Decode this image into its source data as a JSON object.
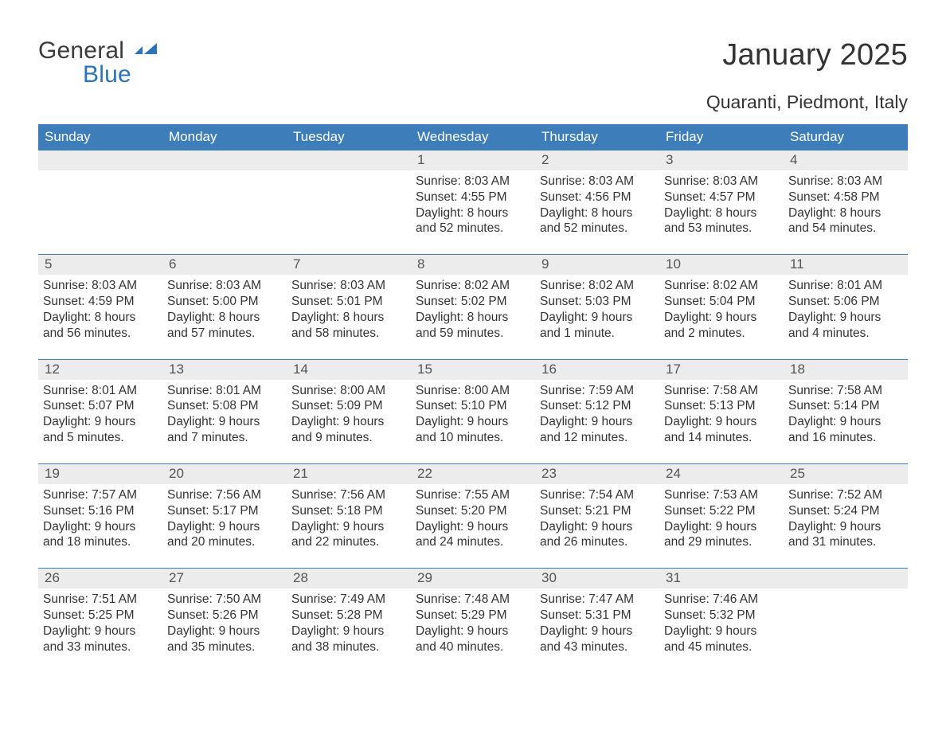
{
  "logo": {
    "text1": "General",
    "text2": "Blue"
  },
  "title": "January 2025",
  "subtitle": "Quaranti, Piedmont, Italy",
  "colors": {
    "header_bg": "#3d7db9",
    "header_text": "#ffffff",
    "daynum_bg": "#ececec",
    "daynum_text": "#555555",
    "body_text": "#333333",
    "rule": "#3d7db9",
    "logo_blue": "#2a74ba",
    "page_bg": "#ffffff"
  },
  "weekdays": [
    "Sunday",
    "Monday",
    "Tuesday",
    "Wednesday",
    "Thursday",
    "Friday",
    "Saturday"
  ],
  "weeks": [
    [
      {
        "day": "",
        "sunrise": "",
        "sunset": "",
        "daylight": ""
      },
      {
        "day": "",
        "sunrise": "",
        "sunset": "",
        "daylight": ""
      },
      {
        "day": "",
        "sunrise": "",
        "sunset": "",
        "daylight": ""
      },
      {
        "day": "1",
        "sunrise": "Sunrise: 8:03 AM",
        "sunset": "Sunset: 4:55 PM",
        "daylight": "Daylight: 8 hours and 52 minutes."
      },
      {
        "day": "2",
        "sunrise": "Sunrise: 8:03 AM",
        "sunset": "Sunset: 4:56 PM",
        "daylight": "Daylight: 8 hours and 52 minutes."
      },
      {
        "day": "3",
        "sunrise": "Sunrise: 8:03 AM",
        "sunset": "Sunset: 4:57 PM",
        "daylight": "Daylight: 8 hours and 53 minutes."
      },
      {
        "day": "4",
        "sunrise": "Sunrise: 8:03 AM",
        "sunset": "Sunset: 4:58 PM",
        "daylight": "Daylight: 8 hours and 54 minutes."
      }
    ],
    [
      {
        "day": "5",
        "sunrise": "Sunrise: 8:03 AM",
        "sunset": "Sunset: 4:59 PM",
        "daylight": "Daylight: 8 hours and 56 minutes."
      },
      {
        "day": "6",
        "sunrise": "Sunrise: 8:03 AM",
        "sunset": "Sunset: 5:00 PM",
        "daylight": "Daylight: 8 hours and 57 minutes."
      },
      {
        "day": "7",
        "sunrise": "Sunrise: 8:03 AM",
        "sunset": "Sunset: 5:01 PM",
        "daylight": "Daylight: 8 hours and 58 minutes."
      },
      {
        "day": "8",
        "sunrise": "Sunrise: 8:02 AM",
        "sunset": "Sunset: 5:02 PM",
        "daylight": "Daylight: 8 hours and 59 minutes."
      },
      {
        "day": "9",
        "sunrise": "Sunrise: 8:02 AM",
        "sunset": "Sunset: 5:03 PM",
        "daylight": "Daylight: 9 hours and 1 minute."
      },
      {
        "day": "10",
        "sunrise": "Sunrise: 8:02 AM",
        "sunset": "Sunset: 5:04 PM",
        "daylight": "Daylight: 9 hours and 2 minutes."
      },
      {
        "day": "11",
        "sunrise": "Sunrise: 8:01 AM",
        "sunset": "Sunset: 5:06 PM",
        "daylight": "Daylight: 9 hours and 4 minutes."
      }
    ],
    [
      {
        "day": "12",
        "sunrise": "Sunrise: 8:01 AM",
        "sunset": "Sunset: 5:07 PM",
        "daylight": "Daylight: 9 hours and 5 minutes."
      },
      {
        "day": "13",
        "sunrise": "Sunrise: 8:01 AM",
        "sunset": "Sunset: 5:08 PM",
        "daylight": "Daylight: 9 hours and 7 minutes."
      },
      {
        "day": "14",
        "sunrise": "Sunrise: 8:00 AM",
        "sunset": "Sunset: 5:09 PM",
        "daylight": "Daylight: 9 hours and 9 minutes."
      },
      {
        "day": "15",
        "sunrise": "Sunrise: 8:00 AM",
        "sunset": "Sunset: 5:10 PM",
        "daylight": "Daylight: 9 hours and 10 minutes."
      },
      {
        "day": "16",
        "sunrise": "Sunrise: 7:59 AM",
        "sunset": "Sunset: 5:12 PM",
        "daylight": "Daylight: 9 hours and 12 minutes."
      },
      {
        "day": "17",
        "sunrise": "Sunrise: 7:58 AM",
        "sunset": "Sunset: 5:13 PM",
        "daylight": "Daylight: 9 hours and 14 minutes."
      },
      {
        "day": "18",
        "sunrise": "Sunrise: 7:58 AM",
        "sunset": "Sunset: 5:14 PM",
        "daylight": "Daylight: 9 hours and 16 minutes."
      }
    ],
    [
      {
        "day": "19",
        "sunrise": "Sunrise: 7:57 AM",
        "sunset": "Sunset: 5:16 PM",
        "daylight": "Daylight: 9 hours and 18 minutes."
      },
      {
        "day": "20",
        "sunrise": "Sunrise: 7:56 AM",
        "sunset": "Sunset: 5:17 PM",
        "daylight": "Daylight: 9 hours and 20 minutes."
      },
      {
        "day": "21",
        "sunrise": "Sunrise: 7:56 AM",
        "sunset": "Sunset: 5:18 PM",
        "daylight": "Daylight: 9 hours and 22 minutes."
      },
      {
        "day": "22",
        "sunrise": "Sunrise: 7:55 AM",
        "sunset": "Sunset: 5:20 PM",
        "daylight": "Daylight: 9 hours and 24 minutes."
      },
      {
        "day": "23",
        "sunrise": "Sunrise: 7:54 AM",
        "sunset": "Sunset: 5:21 PM",
        "daylight": "Daylight: 9 hours and 26 minutes."
      },
      {
        "day": "24",
        "sunrise": "Sunrise: 7:53 AM",
        "sunset": "Sunset: 5:22 PM",
        "daylight": "Daylight: 9 hours and 29 minutes."
      },
      {
        "day": "25",
        "sunrise": "Sunrise: 7:52 AM",
        "sunset": "Sunset: 5:24 PM",
        "daylight": "Daylight: 9 hours and 31 minutes."
      }
    ],
    [
      {
        "day": "26",
        "sunrise": "Sunrise: 7:51 AM",
        "sunset": "Sunset: 5:25 PM",
        "daylight": "Daylight: 9 hours and 33 minutes."
      },
      {
        "day": "27",
        "sunrise": "Sunrise: 7:50 AM",
        "sunset": "Sunset: 5:26 PM",
        "daylight": "Daylight: 9 hours and 35 minutes."
      },
      {
        "day": "28",
        "sunrise": "Sunrise: 7:49 AM",
        "sunset": "Sunset: 5:28 PM",
        "daylight": "Daylight: 9 hours and 38 minutes."
      },
      {
        "day": "29",
        "sunrise": "Sunrise: 7:48 AM",
        "sunset": "Sunset: 5:29 PM",
        "daylight": "Daylight: 9 hours and 40 minutes."
      },
      {
        "day": "30",
        "sunrise": "Sunrise: 7:47 AM",
        "sunset": "Sunset: 5:31 PM",
        "daylight": "Daylight: 9 hours and 43 minutes."
      },
      {
        "day": "31",
        "sunrise": "Sunrise: 7:46 AM",
        "sunset": "Sunset: 5:32 PM",
        "daylight": "Daylight: 9 hours and 45 minutes."
      },
      {
        "day": "",
        "sunrise": "",
        "sunset": "",
        "daylight": ""
      }
    ]
  ]
}
